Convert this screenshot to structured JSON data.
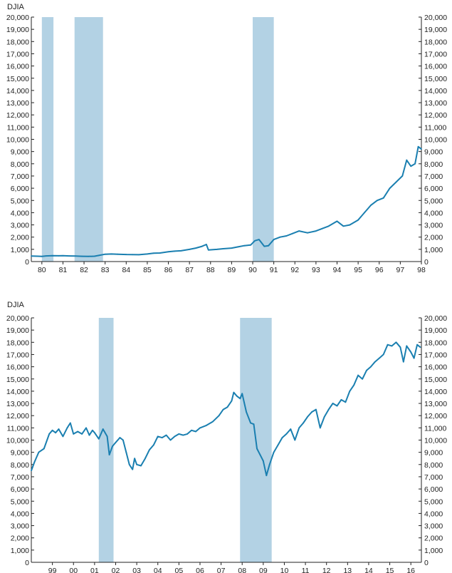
{
  "colors": {
    "line": "#1a7fb0",
    "recession_shade": "#b3d2e4",
    "axis": "#222222"
  },
  "chart_data": [
    {
      "type": "line",
      "ylabel": "DJIA",
      "ylim": [
        0,
        20000
      ],
      "yticks": [
        "0",
        "1,000",
        "2,000",
        "3,000",
        "4,000",
        "5,000",
        "6,000",
        "7,000",
        "8,000",
        "9,000",
        "10,000",
        "11,000",
        "12,000",
        "13,000",
        "14,000",
        "15,000",
        "16,000",
        "17,000",
        "18,000",
        "19,000",
        "20,000"
      ],
      "xlim": [
        1979.5,
        1998.0
      ],
      "xticks": [
        {
          "label": "80",
          "x": 1980
        },
        {
          "label": "81",
          "x": 1981
        },
        {
          "label": "82",
          "x": 1982
        },
        {
          "label": "83",
          "x": 1983
        },
        {
          "label": "84",
          "x": 1984
        },
        {
          "label": "85",
          "x": 1985
        },
        {
          "label": "86",
          "x": 1986
        },
        {
          "label": "87",
          "x": 1987
        },
        {
          "label": "88",
          "x": 1988
        },
        {
          "label": "89",
          "x": 1989
        },
        {
          "label": "90",
          "x": 1990
        },
        {
          "label": "91",
          "x": 1991
        },
        {
          "label": "92",
          "x": 1992
        },
        {
          "label": "93",
          "x": 1993
        },
        {
          "label": "94",
          "x": 1994
        },
        {
          "label": "95",
          "x": 1995
        },
        {
          "label": "96",
          "x": 1996
        },
        {
          "label": "97",
          "x": 1997
        },
        {
          "label": "98",
          "x": 1998
        }
      ],
      "recessions": [
        [
          1980.0,
          1980.55
        ],
        [
          1981.55,
          1982.9
        ],
        [
          1990.0,
          1991.0
        ]
      ],
      "series": [
        {
          "x": [
            1979.5,
            1979.8,
            1980.0,
            1980.2,
            1980.5,
            1980.8,
            1981.0,
            1981.3,
            1981.6,
            1981.9,
            1982.2,
            1982.5,
            1982.7,
            1983.0,
            1983.3,
            1983.6,
            1984.0,
            1984.3,
            1984.6,
            1985.0,
            1985.3,
            1985.6,
            1986.0,
            1986.3,
            1986.6,
            1987.0,
            1987.3,
            1987.6,
            1987.8,
            1987.9,
            1988.3,
            1988.6,
            1989.0,
            1989.3,
            1989.6,
            1989.9,
            1990.1,
            1990.3,
            1990.55,
            1990.75,
            1991.0,
            1991.3,
            1991.6,
            1991.9,
            1992.2,
            1992.6,
            1993.0,
            1993.3,
            1993.6,
            1994.0,
            1994.3,
            1994.6,
            1995.0,
            1995.3,
            1995.6,
            1995.9,
            1996.2,
            1996.5,
            1996.8,
            1997.1,
            1997.3,
            1997.5,
            1997.7,
            1997.85,
            1998.0
          ],
          "y": [
            450,
            440,
            420,
            460,
            480,
            470,
            480,
            460,
            450,
            430,
            420,
            440,
            500,
            600,
            620,
            600,
            580,
            570,
            560,
            620,
            680,
            700,
            800,
            850,
            880,
            1000,
            1100,
            1250,
            1400,
            950,
            1000,
            1050,
            1100,
            1200,
            1300,
            1350,
            1700,
            1800,
            1250,
            1300,
            1800,
            2000,
            2100,
            2300,
            2500,
            2350,
            2500,
            2700,
            2900,
            3300,
            2900,
            3000,
            3400,
            4000,
            4600,
            5000,
            5200,
            6000,
            6500,
            7000,
            8300,
            7800,
            8000,
            9400,
            9200
          ]
        }
      ]
    },
    {
      "type": "line",
      "ylabel": "DJIA",
      "ylim": [
        0,
        20000
      ],
      "yticks": [
        "0",
        "1,000",
        "2,000",
        "3,000",
        "4,000",
        "5,000",
        "6,000",
        "7,000",
        "8,000",
        "9,000",
        "10,000",
        "11,000",
        "12,000",
        "13,000",
        "14,000",
        "15,000",
        "16,000",
        "17,000",
        "18,000",
        "19,000",
        "20,000"
      ],
      "xlim": [
        1998.0,
        2016.5
      ],
      "xticks": [
        {
          "label": "99",
          "x": 1999
        },
        {
          "label": "00",
          "x": 2000
        },
        {
          "label": "01",
          "x": 2001
        },
        {
          "label": "02",
          "x": 2002
        },
        {
          "label": "03",
          "x": 2003
        },
        {
          "label": "04",
          "x": 2004
        },
        {
          "label": "05",
          "x": 2005
        },
        {
          "label": "06",
          "x": 2006
        },
        {
          "label": "07",
          "x": 2007
        },
        {
          "label": "08",
          "x": 2008
        },
        {
          "label": "09",
          "x": 2009
        },
        {
          "label": "10",
          "x": 2010
        },
        {
          "label": "11",
          "x": 2011
        },
        {
          "label": "12",
          "x": 2012
        },
        {
          "label": "13",
          "x": 2013
        },
        {
          "label": "14",
          "x": 2014
        },
        {
          "label": "15",
          "x": 2015
        },
        {
          "label": "16",
          "x": 2016
        }
      ],
      "recessions": [
        [
          2001.2,
          2001.9
        ],
        [
          2007.9,
          2009.4
        ]
      ],
      "series": [
        {
          "x": [
            1998.0,
            1998.15,
            1998.35,
            1998.6,
            1998.85,
            1999.0,
            1999.15,
            1999.3,
            1999.5,
            1999.7,
            1999.85,
            2000.0,
            2000.2,
            2000.4,
            2000.6,
            2000.75,
            2000.9,
            2001.0,
            2001.2,
            2001.4,
            2001.6,
            2001.7,
            2001.85,
            2002.0,
            2002.2,
            2002.35,
            2002.5,
            2002.65,
            2002.8,
            2002.9,
            2003.0,
            2003.2,
            2003.4,
            2003.6,
            2003.8,
            2004.0,
            2004.2,
            2004.4,
            2004.6,
            2004.8,
            2005.0,
            2005.2,
            2005.4,
            2005.6,
            2005.8,
            2006.0,
            2006.3,
            2006.6,
            2006.9,
            2007.1,
            2007.3,
            2007.5,
            2007.6,
            2007.75,
            2007.9,
            2008.0,
            2008.2,
            2008.4,
            2008.55,
            2008.7,
            2008.85,
            2009.0,
            2009.15,
            2009.3,
            2009.5,
            2009.7,
            2009.9,
            2010.1,
            2010.3,
            2010.5,
            2010.7,
            2010.9,
            2011.1,
            2011.3,
            2011.5,
            2011.7,
            2011.9,
            2012.1,
            2012.3,
            2012.5,
            2012.7,
            2012.9,
            2013.1,
            2013.3,
            2013.5,
            2013.7,
            2013.9,
            2014.1,
            2014.3,
            2014.5,
            2014.7,
            2014.9,
            2015.1,
            2015.3,
            2015.5,
            2015.65,
            2015.8,
            2016.0,
            2016.15,
            2016.3,
            2016.45
          ],
          "y": [
            7500,
            8200,
            9000,
            9300,
            10500,
            10800,
            10600,
            10900,
            10300,
            11000,
            11400,
            10500,
            10700,
            10500,
            11000,
            10400,
            10800,
            10600,
            10100,
            10900,
            10300,
            8800,
            9500,
            9800,
            10200,
            10000,
            9000,
            8000,
            7600,
            8500,
            8000,
            7900,
            8500,
            9200,
            9600,
            10300,
            10200,
            10400,
            10000,
            10300,
            10500,
            10400,
            10500,
            10800,
            10700,
            11000,
            11200,
            11500,
            12000,
            12500,
            12700,
            13200,
            13900,
            13600,
            13400,
            13800,
            12300,
            11400,
            11300,
            9300,
            8800,
            8300,
            7100,
            8000,
            9000,
            9600,
            10200,
            10500,
            10900,
            10000,
            11000,
            11400,
            11900,
            12300,
            12500,
            11000,
            11900,
            12500,
            13000,
            12800,
            13300,
            13100,
            14000,
            14500,
            15300,
            15000,
            15700,
            16000,
            16400,
            16700,
            17000,
            17800,
            17700,
            18000,
            17600,
            16400,
            17700,
            17200,
            16700,
            17800,
            17600
          ]
        }
      ]
    }
  ]
}
